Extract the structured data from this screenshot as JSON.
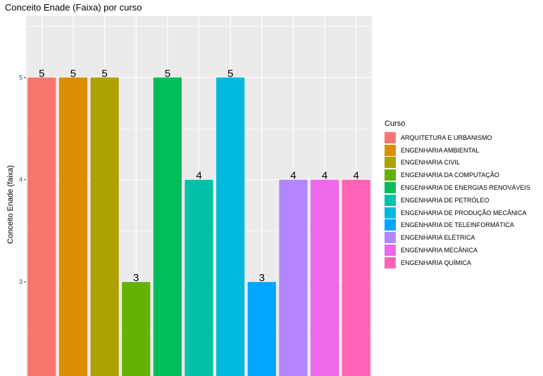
{
  "chart_data": {
    "type": "bar",
    "title": "Conceito Enade (Faixa) por curso",
    "xlabel": "",
    "ylabel": "Conceito Enade (faixa)",
    "ylim": [
      2.08,
      5.6
    ],
    "yticks": [
      "3",
      "4",
      "5"
    ],
    "grid": true,
    "legend_title": "Curso",
    "legend_position": "right",
    "categories": [
      "ARQUITETURA E URBANISMO",
      "ENGENHARIA AMBIENTAL",
      "ENGENHARIA CIVIL",
      "ENGENHARIA DA COMPUTAÇÃO",
      "ENGENHARIA DE ENERGIAS RENOVÁVEIS",
      "ENGENHARIA DE PETRÓLEO",
      "ENGENHARIA DE PRODUÇÃO MECÂNICA",
      "ENGENHARIA DE TELEINFORMÁTICA",
      "ENGENHARIA ELÉTRICA",
      "ENGENHARIA MECÂNICA",
      "ENGENHARIA QUÍMICA"
    ],
    "values": [
      5,
      5,
      5,
      3,
      5,
      4,
      5,
      3,
      4,
      4,
      4
    ],
    "data_labels": [
      "5",
      "5",
      "5",
      "3",
      "5",
      "4",
      "5",
      "3",
      "4",
      "4",
      "4"
    ],
    "colors": [
      "#F8766D",
      "#DB8E00",
      "#AEA200",
      "#64B200",
      "#00BD5C",
      "#00C1A7",
      "#00BADE",
      "#00A6FF",
      "#B385FF",
      "#EF67EB",
      "#FF63B6"
    ],
    "panel_background": "#EBEBEB",
    "gridline_color": "#FFFFFF"
  }
}
